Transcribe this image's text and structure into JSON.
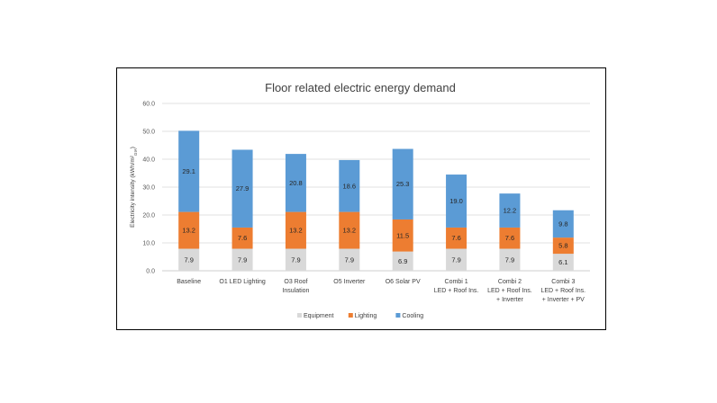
{
  "chart_data": {
    "type": "bar",
    "stacked": true,
    "title": "Floor related electric energy demand",
    "ylabel": "Electricity intensity (kWh/m²",
    "ylabel_subscript": "GIA",
    "ylabel_close": ")",
    "ylim": [
      0,
      60
    ],
    "yticks": [
      "0.0",
      "10.0",
      "20.0",
      "30.0",
      "40.0",
      "50.0",
      "60.0"
    ],
    "grid": true,
    "legend_position": "bottom",
    "categories": [
      [
        "Baseline"
      ],
      [
        "O1 LED Lighting"
      ],
      [
        "O3 Roof",
        "Insulation"
      ],
      [
        "O5 Inverter"
      ],
      [
        "O6 Solar PV"
      ],
      [
        "Combi 1",
        "LED + Roof Ins."
      ],
      [
        "Combi 2",
        "LED + Roof Ins.",
        "+ Inverter"
      ],
      [
        "Combi 3",
        "LED + Roof Ins.",
        "+ Inverter + PV"
      ]
    ],
    "series": [
      {
        "name": "Equipment",
        "color": "#d9d9d9",
        "values": [
          7.9,
          7.9,
          7.9,
          7.9,
          6.9,
          7.9,
          7.9,
          6.1
        ],
        "labels": [
          "7.9",
          "7.9",
          "7.9",
          "7.9",
          "6.9",
          "7.9",
          "7.9",
          "6.1"
        ]
      },
      {
        "name": "Lighting",
        "color": "#ed7d31",
        "values": [
          13.2,
          7.6,
          13.2,
          13.2,
          11.5,
          7.6,
          7.6,
          5.8
        ],
        "labels": [
          "13.2",
          "7.6",
          "13.2",
          "13.2",
          "11.5",
          "7.6",
          "7.6",
          "5.8"
        ]
      },
      {
        "name": "Cooling",
        "color": "#5b9bd5",
        "values": [
          29.1,
          27.9,
          20.8,
          18.6,
          25.3,
          19.0,
          12.2,
          9.8
        ],
        "labels": [
          "29.1",
          "27.9",
          "20.8",
          "18.6",
          "25.3",
          "19.0",
          "12.2",
          "9.8"
        ]
      }
    ]
  }
}
